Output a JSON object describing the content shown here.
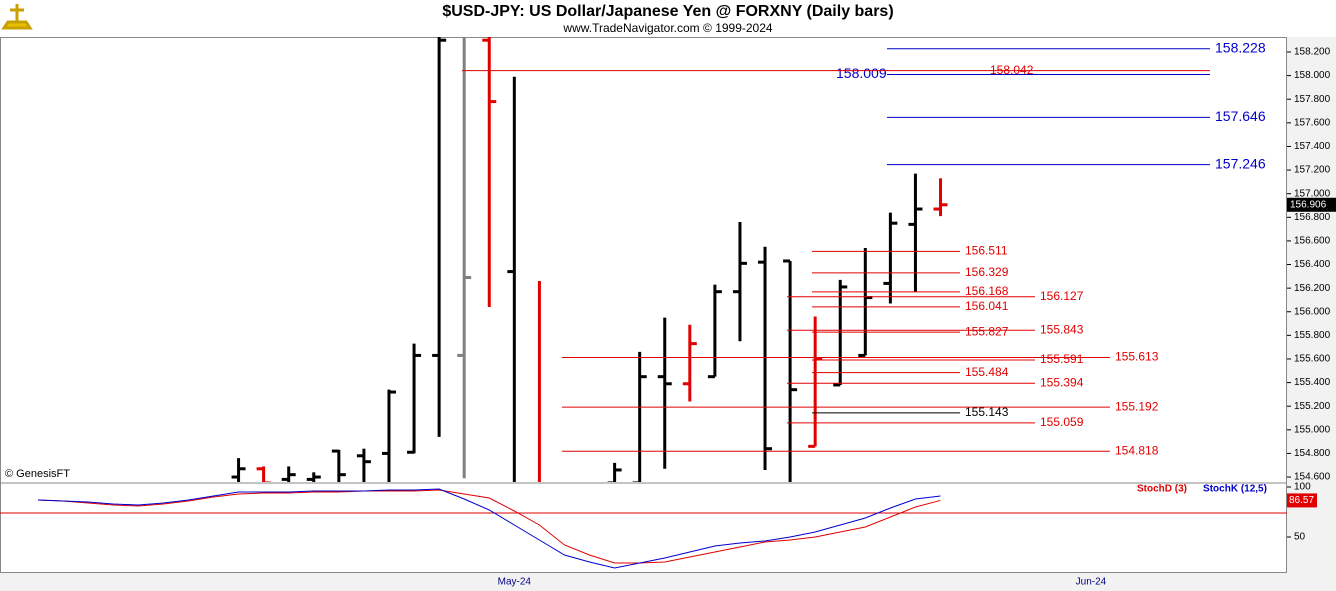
{
  "chart_data": [
    {
      "type": "ohlc",
      "title": "$USD-JPY:  US Dollar/Japanese Yen @ FORXNY  (Daily bars)",
      "subtitle": "www.TradeNavigator.com © 1999-2024",
      "watermark": "© GenesisFT",
      "open": [
        null,
        null,
        null,
        null,
        null,
        null,
        null,
        null,
        154.6,
        154.67,
        154.58,
        154.58,
        154.82,
        154.78,
        154.8,
        154.81,
        155.63,
        155.63,
        158.3,
        156.34,
        154.5,
        null,
        null,
        154.55,
        154.55,
        155.45,
        155.39,
        155.45,
        156.17,
        156.42,
        156.43,
        154.86,
        155.38,
        155.63,
        156.24,
        156.74,
        156.87,
        null,
        null,
        null,
        null,
        null,
        null,
        null,
        null,
        null,
        null,
        null,
        null,
        null
      ],
      "high": [
        null,
        null,
        null,
        null,
        null,
        null,
        null,
        null,
        154.76,
        154.69,
        154.69,
        154.64,
        154.83,
        154.84,
        155.34,
        155.73,
        158.4,
        158.4,
        158.4,
        157.99,
        156.26,
        null,
        null,
        154.72,
        155.66,
        155.95,
        155.89,
        156.23,
        156.76,
        156.55,
        156.43,
        155.96,
        156.27,
        156.54,
        156.84,
        157.17,
        157.13,
        null,
        null,
        null,
        null,
        null,
        null,
        null,
        null,
        null,
        null,
        null,
        null,
        null
      ],
      "low": [
        null,
        null,
        null,
        null,
        null,
        null,
        null,
        null,
        154.5,
        154.5,
        154.5,
        154.5,
        154.5,
        154.5,
        154.5,
        154.8,
        154.94,
        154.59,
        156.04,
        154.4,
        154.4,
        null,
        null,
        154.45,
        154.45,
        154.67,
        155.24,
        155.45,
        155.75,
        154.66,
        154.5,
        154.86,
        155.38,
        155.63,
        156.07,
        156.17,
        156.81,
        null,
        null,
        null,
        null,
        null,
        null,
        null,
        null,
        null,
        null,
        null,
        null,
        null
      ],
      "close": [
        null,
        null,
        null,
        null,
        null,
        null,
        null,
        null,
        154.67,
        154.55,
        154.62,
        154.6,
        154.62,
        154.73,
        155.32,
        155.63,
        158.3,
        156.29,
        157.78,
        154.45,
        154.45,
        null,
        null,
        154.66,
        155.45,
        155.39,
        155.73,
        156.17,
        156.41,
        154.84,
        155.34,
        155.6,
        156.21,
        156.12,
        156.75,
        156.87,
        156.906,
        null,
        null,
        null,
        null,
        null,
        null,
        null,
        null,
        null,
        null,
        null,
        null,
        null
      ],
      "bar_colors": [
        null,
        null,
        null,
        null,
        null,
        null,
        null,
        null,
        "#000000",
        "#e00000",
        "#000000",
        "#000000",
        "#000000",
        "#000000",
        "#000000",
        "#000000",
        "#000000",
        "#808080",
        "#e00000",
        "#000000",
        "#e00000",
        null,
        null,
        "#000000",
        "#000000",
        "#000000",
        "#e00000",
        "#000000",
        "#000000",
        "#000000",
        "#000000",
        "#e00000",
        "#000000",
        "#000000",
        "#000000",
        "#000000",
        "#e00000",
        null,
        null,
        null,
        null,
        null,
        null,
        null,
        null,
        null,
        null,
        null,
        null,
        null
      ],
      "ylim": [
        154.558,
        158.327
      ],
      "yticks": [
        {
          "value": 158.2,
          "label": "158.200"
        },
        {
          "value": 158.0,
          "label": "158.000"
        },
        {
          "value": 157.8,
          "label": "157.800"
        },
        {
          "value": 157.6,
          "label": "157.600"
        },
        {
          "value": 157.4,
          "label": "157.400"
        },
        {
          "value": 157.2,
          "label": "157.200"
        },
        {
          "value": 157.0,
          "label": "157.000"
        },
        {
          "value": 156.8,
          "label": "156.800"
        },
        {
          "value": 156.6,
          "label": "156.600"
        },
        {
          "value": 156.4,
          "label": "156.400"
        },
        {
          "value": 156.2,
          "label": "156.200"
        },
        {
          "value": 156.0,
          "label": "156.000"
        },
        {
          "value": 155.8,
          "label": "155.800"
        },
        {
          "value": 155.6,
          "label": "155.600"
        },
        {
          "value": 155.4,
          "label": "155.400"
        },
        {
          "value": 155.2,
          "label": "155.200"
        },
        {
          "value": 155.0,
          "label": "155.000"
        },
        {
          "value": 154.8,
          "label": "154.800"
        },
        {
          "value": 154.6,
          "label": "154.600"
        }
      ],
      "levels": [
        {
          "value": 158.228,
          "color": "#0000cc"
        },
        {
          "value": 158.009,
          "color": "#0000cc"
        },
        {
          "value": 158.042,
          "color": "#e00000"
        },
        {
          "value": 157.646,
          "color": "#0000cc"
        },
        {
          "value": 157.246,
          "color": "#0000cc"
        },
        {
          "value": 156.511,
          "color": "#e00000"
        },
        {
          "value": 156.329,
          "color": "#e00000"
        },
        {
          "value": 156.168,
          "color": "#e00000"
        },
        {
          "value": 156.127,
          "color": "#e00000"
        },
        {
          "value": 156.041,
          "color": "#e00000"
        },
        {
          "value": 155.843,
          "color": "#e00000"
        },
        {
          "value": 155.827,
          "color": "#e00000"
        },
        {
          "value": 155.613,
          "color": "#e00000"
        },
        {
          "value": 155.591,
          "color": "#e00000"
        },
        {
          "value": 155.484,
          "color": "#e00000"
        },
        {
          "value": 155.394,
          "color": "#e00000"
        },
        {
          "value": 155.192,
          "color": "#e00000"
        },
        {
          "value": 155.143,
          "color": "#000000"
        },
        {
          "value": 155.059,
          "color": "#e00000"
        },
        {
          "value": 154.818,
          "color": "#e00000"
        }
      ]
    },
    {
      "type": "line",
      "categories": [
        null,
        null,
        null,
        null,
        null,
        null,
        null,
        null,
        null,
        null,
        null,
        null,
        null,
        null,
        null,
        null,
        null,
        null,
        null,
        "May-24",
        null,
        null,
        null,
        null,
        null,
        null,
        null,
        null,
        null,
        null,
        null,
        null,
        null,
        null,
        null,
        null,
        null,
        null,
        null,
        null,
        null,
        null,
        "Jun-24",
        null,
        null,
        null,
        null,
        null,
        null,
        null
      ],
      "series": [
        {
          "name": "StochD (3)",
          "color": "#e00000",
          "values": [
            87,
            86,
            84,
            82,
            81,
            83,
            86,
            90,
            93,
            94,
            94,
            95,
            95,
            96,
            96,
            96,
            97,
            93,
            89,
            76,
            62,
            42,
            32,
            24,
            24,
            25,
            30,
            35,
            40,
            45,
            47,
            50,
            55,
            60,
            70,
            80,
            86.57,
            null,
            null,
            null,
            null,
            null,
            null,
            null,
            null,
            null,
            null,
            null,
            null,
            null
          ]
        },
        {
          "name": "StochK (12,5)",
          "color": "#0000cc",
          "values": [
            87,
            86,
            85,
            83,
            82,
            84,
            87,
            91,
            95,
            95,
            95,
            96,
            96,
            96,
            97,
            97,
            98,
            88,
            77,
            62,
            47,
            32,
            25,
            19,
            24,
            29,
            35,
            41,
            44,
            46,
            50,
            55,
            62,
            69,
            79,
            88,
            91,
            null,
            null,
            null,
            null,
            null,
            null,
            null,
            null,
            null,
            null,
            null,
            null,
            null
          ]
        }
      ],
      "ylim": [
        14,
        104
      ],
      "yticks": [
        100,
        50
      ]
    }
  ]
}
